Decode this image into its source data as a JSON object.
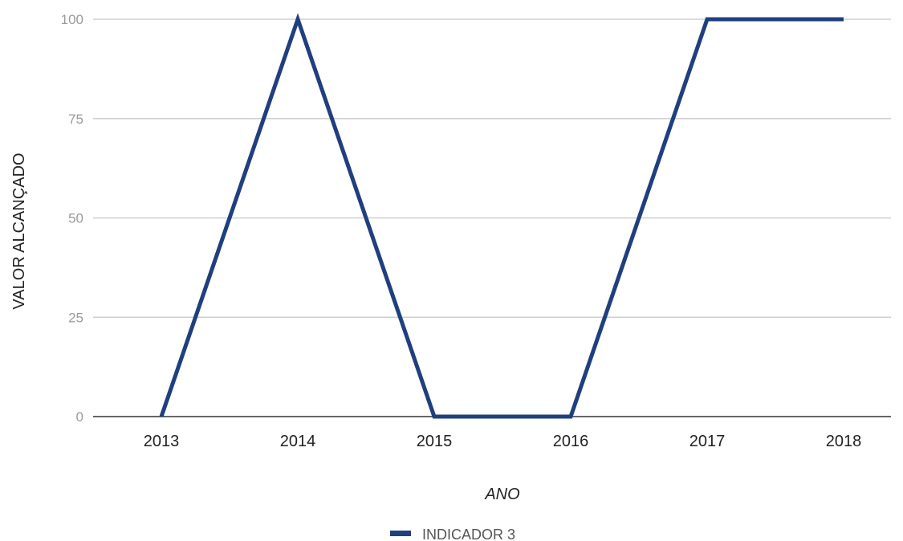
{
  "chart_data": {
    "type": "line",
    "x": [
      "2013",
      "2014",
      "2015",
      "2016",
      "2017",
      "2018"
    ],
    "series": [
      {
        "name": "INDICADOR 3",
        "values": [
          0,
          100,
          0,
          0,
          100,
          100
        ],
        "color": "#1f3f7f"
      }
    ],
    "xlabel": "ANO",
    "ylabel": "VALOR ALCANÇADO",
    "ylim": [
      0,
      100
    ],
    "yticks": [
      "0",
      "25",
      "50",
      "75",
      "100"
    ],
    "grid": true,
    "legend_position": "bottom"
  }
}
